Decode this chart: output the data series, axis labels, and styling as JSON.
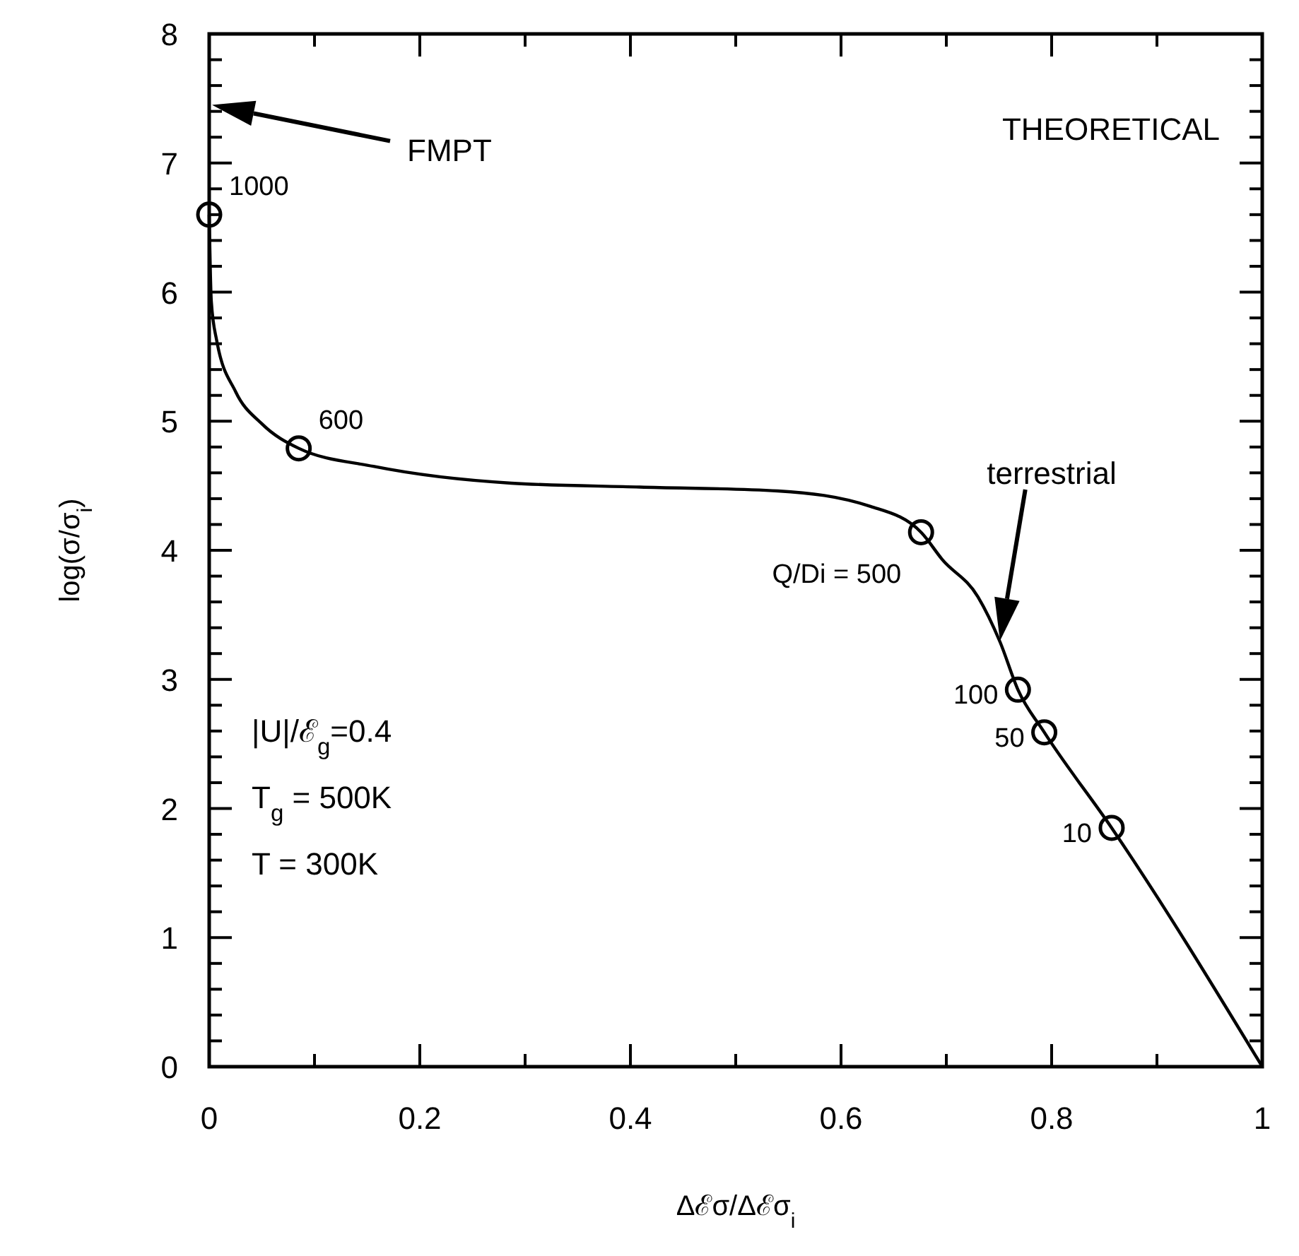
{
  "chart_data": {
    "type": "line",
    "xlabel": "Δℰσ/Δℰσ$_{i}$",
    "ylabel": "log(σ/σ$_{i}$)",
    "xlim": [
      0,
      1
    ],
    "ylim": [
      0,
      8
    ],
    "xticks": [
      0,
      {
        "value": 0.1,
        "label": null
      },
      0.2,
      {
        "value": 0.3,
        "label": null
      },
      0.4,
      {
        "value": 0.5,
        "label": null
      },
      0.6,
      {
        "value": 0.7,
        "label": null
      },
      0.8,
      {
        "value": 0.9,
        "label": null
      },
      1
    ],
    "yticks": [
      0,
      {
        "value": 0.2,
        "label": null
      },
      {
        "value": 0.4,
        "label": null
      },
      {
        "value": 0.6,
        "label": null
      },
      {
        "value": 0.8,
        "label": null
      },
      1,
      {
        "value": 1.2,
        "label": null
      },
      {
        "value": 1.4,
        "label": null
      },
      {
        "value": 1.6,
        "label": null
      },
      {
        "value": 1.8,
        "label": null
      },
      2,
      {
        "value": 2.2,
        "label": null
      },
      {
        "value": 2.4,
        "label": null
      },
      {
        "value": 2.6,
        "label": null
      },
      {
        "value": 2.8,
        "label": null
      },
      3,
      {
        "value": 3.2,
        "label": null
      },
      {
        "value": 3.4,
        "label": null
      },
      {
        "value": 3.6,
        "label": null
      },
      {
        "value": 3.8,
        "label": null
      },
      4,
      {
        "value": 4.2,
        "label": null
      },
      {
        "value": 4.4,
        "label": null
      },
      {
        "value": 4.6,
        "label": null
      },
      {
        "value": 4.8,
        "label": null
      },
      5,
      {
        "value": 5.2,
        "label": null
      },
      {
        "value": 5.4,
        "label": null
      },
      {
        "value": 5.6,
        "label": null
      },
      {
        "value": 5.8,
        "label": null
      },
      6,
      {
        "value": 6.2,
        "label": null
      },
      {
        "value": 6.4,
        "label": null
      },
      {
        "value": 6.6,
        "label": null
      },
      {
        "value": 6.8,
        "label": null
      },
      7,
      {
        "value": 7.2,
        "label": null
      },
      {
        "value": 7.4,
        "label": null
      },
      {
        "value": 7.6,
        "label": null
      },
      {
        "value": 7.8,
        "label": null
      },
      8
    ],
    "grid": false,
    "series": [
      {
        "type": "line",
        "color": "#000000",
        "marker": "none",
        "line_style": "solid",
        "x": [
          0,
          0.002,
          0.007,
          0.025,
          0.05,
          0.085,
          0.156,
          0.287,
          0.409,
          0.54,
          0.628,
          0.676,
          0.696,
          0.73,
          0.751,
          0.768,
          0.793,
          0.857,
          1
        ],
        "values": [
          6.6,
          5.93,
          5.63,
          5.23,
          4.98,
          4.79,
          4.65,
          4.52,
          4.49,
          4.46,
          4.34,
          4.14,
          3.93,
          3.64,
          3.29,
          2.92,
          2.59,
          1.85,
          0
        ]
      },
      {
        "type": "scatter",
        "color": "#000000",
        "marker": "circle",
        "x": [
          0,
          0.085,
          0.676,
          0.768,
          0.793,
          0.857
        ],
        "values": [
          6.6,
          4.79,
          4.14,
          2.92,
          2.59,
          1.85
        ]
      }
    ],
    "annotations": [
      "THEORETICAL",
      "|U|/ℰ$_{g}$=0.4",
      "T$_{g}$ = 500K",
      "T = 300K",
      "FMPT",
      "terrestrial",
      {
        "text": "1000",
        "x": 0,
        "y": 6.6
      },
      {
        "text": "600",
        "x": 0.085,
        "y": 4.79
      },
      {
        "text": "Q/Di = 500",
        "x": 0.676,
        "y": 4.14
      },
      {
        "text": "100",
        "x": 0.768,
        "y": 2.92
      },
      {
        "text": "50",
        "x": 0.793,
        "y": 2.59
      },
      {
        "text": "10",
        "x": 0.857,
        "y": 1.85
      }
    ]
  }
}
